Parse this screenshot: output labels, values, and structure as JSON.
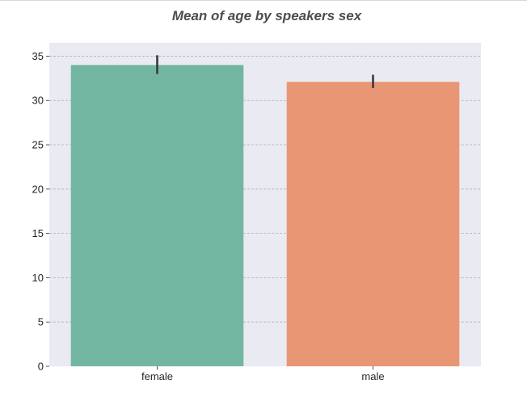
{
  "chart_data": {
    "type": "bar",
    "title": "Mean of age by speakers sex",
    "xlabel": "",
    "ylabel": "",
    "categories": [
      "female",
      "male"
    ],
    "values": [
      34.0,
      32.1
    ],
    "error_bars": [
      {
        "low": 33.0,
        "high": 35.1
      },
      {
        "low": 31.4,
        "high": 32.9
      }
    ],
    "ylim": [
      0,
      36.5
    ],
    "yticks": [
      0,
      5,
      10,
      15,
      20,
      25,
      30,
      35
    ],
    "grid": "horizontal dashed",
    "colors": {
      "background": "#eaeaf2",
      "bars": [
        "#72b6a1",
        "#e99675"
      ],
      "error_bar": "#3a3a3a",
      "grid": "#b0b0b0"
    }
  }
}
